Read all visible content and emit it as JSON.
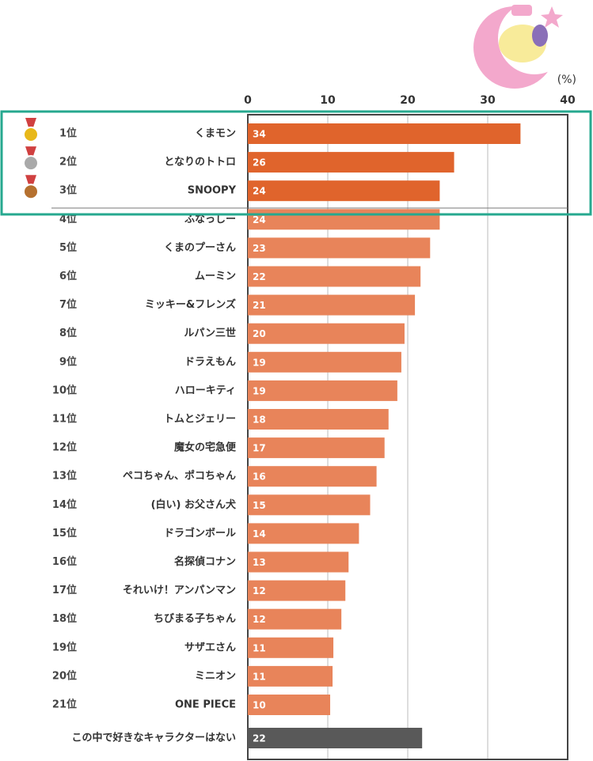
{
  "chart_data": {
    "type": "bar",
    "orientation": "horizontal",
    "unit_label": "(%)",
    "ranks": [
      "1位",
      "2位",
      "3位",
      "4位",
      "5位",
      "6位",
      "7位",
      "8位",
      "9位",
      "10位",
      "11位",
      "12位",
      "13位",
      "14位",
      "15位",
      "16位",
      "17位",
      "18位",
      "19位",
      "20位",
      "21位",
      null
    ],
    "categories": [
      "くまモン",
      "となりのトトロ",
      "SNOOPY",
      "ふなっしー",
      "くまのプーさん",
      "ムーミン",
      "ミッキー&フレンズ",
      "ルパン三世",
      "ドラえもん",
      "ハローキティ",
      "トムとジェリー",
      "魔女の宅急便",
      "ペコちゃん、ポコちゃん",
      "(白い) お父さん犬",
      "ドラゴンボール",
      "名探偵コナン",
      "それいけ！アンパンマン",
      "ちびまる子ちゃん",
      "サザエさん",
      "ミニオン",
      "ONE PIECE",
      "この中で好きなキャラクターはない"
    ],
    "values": [
      34.1,
      25.8,
      24.0,
      24.0,
      22.8,
      21.6,
      20.9,
      19.6,
      19.2,
      18.7,
      17.6,
      17.1,
      16.1,
      15.3,
      13.9,
      12.6,
      12.2,
      11.7,
      10.7,
      10.6,
      10.3,
      21.8
    ],
    "value_labels": [
      "34",
      "26",
      "24",
      "24",
      "23",
      "22",
      "21",
      "20",
      "19",
      "19",
      "18",
      "17",
      "16",
      "15",
      "14",
      "13",
      "12",
      "12",
      "11",
      "11",
      "10",
      "22"
    ],
    "colors": [
      "#e0642c",
      "#e0642c",
      "#e0642c",
      "#e8845a",
      "#e8845a",
      "#e8845a",
      "#e8845a",
      "#e8845a",
      "#e8845a",
      "#e8845a",
      "#e8845a",
      "#e8845a",
      "#e8845a",
      "#e8845a",
      "#e8845a",
      "#e8845a",
      "#e8845a",
      "#e8845a",
      "#e8845a",
      "#e8845a",
      "#e8845a",
      "#595959"
    ],
    "highlight_color": "#26a88f",
    "xlim": [
      0,
      40
    ],
    "xticks": [
      0,
      10,
      20,
      30,
      40
    ],
    "grid": true
  }
}
